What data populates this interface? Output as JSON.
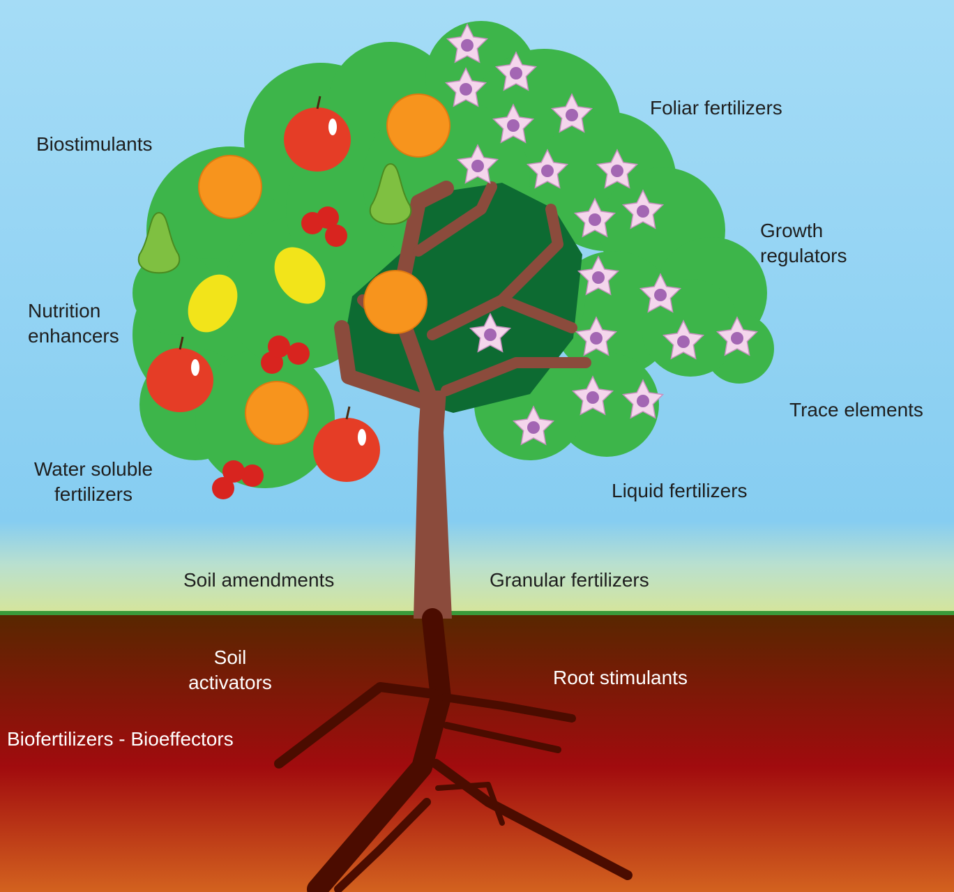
{
  "labels": [
    {
      "lines": [
        "Biostimulants"
      ]
    },
    {
      "lines": [
        "Foliar fertilizers"
      ]
    },
    {
      "lines": [
        "Growth",
        "regulators"
      ]
    },
    {
      "lines": [
        "Nutrition",
        "enhancers"
      ]
    },
    {
      "lines": [
        "Trace elements"
      ]
    },
    {
      "lines": [
        "Water soluble",
        "fertilizers"
      ]
    },
    {
      "lines": [
        "Liquid fertilizers"
      ]
    },
    {
      "lines": [
        "Soil amendments"
      ]
    },
    {
      "lines": [
        "Granular fertilizers"
      ]
    },
    {
      "lines": [
        "Soil",
        "activators"
      ]
    },
    {
      "lines": [
        "Root stimulants"
      ]
    },
    {
      "lines": [
        "Biofertilizers - Bioeffectors"
      ]
    }
  ]
}
